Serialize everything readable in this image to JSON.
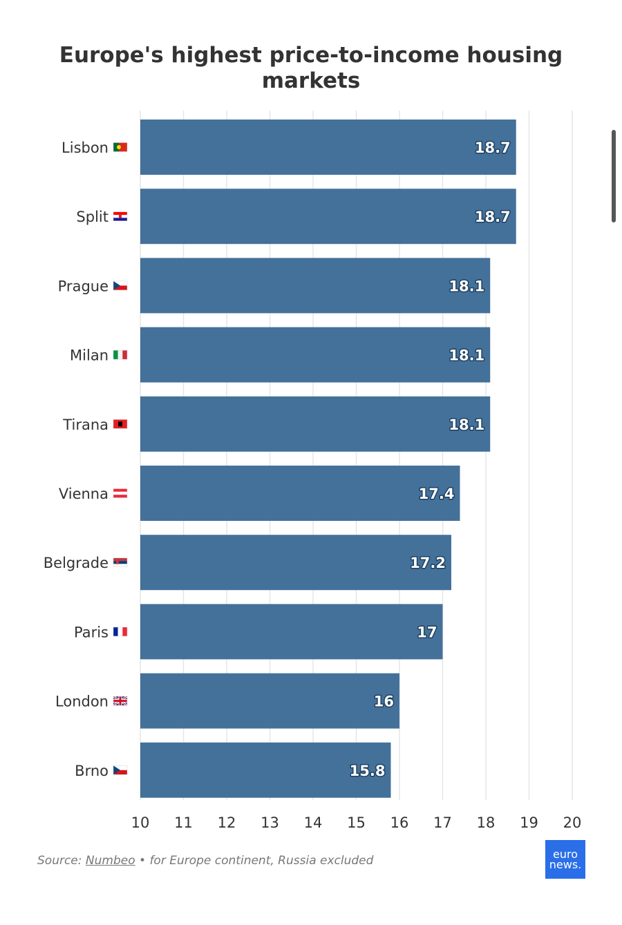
{
  "title_line1": "Europe's highest price-to-income housing",
  "title_line2": "markets",
  "source": {
    "prefix": "Source: ",
    "link_text": "Numbeo",
    "suffix": " • for Europe continent, Russia excluded"
  },
  "logo": {
    "line1": "euro",
    "line2": "news."
  },
  "colors": {
    "bar": "#44719a",
    "grid": "#e6e6e6",
    "label": "#333333"
  },
  "chart_data": {
    "type": "bar",
    "orientation": "horizontal",
    "title": "Europe's highest price-to-income housing markets",
    "categories": [
      "Lisbon",
      "Split",
      "Prague",
      "Milan",
      "Tirana",
      "Vienna",
      "Belgrade",
      "Paris",
      "London",
      "Brno"
    ],
    "flags": [
      "pt",
      "hr",
      "cz",
      "it",
      "al",
      "at",
      "rs",
      "fr",
      "gb",
      "cz"
    ],
    "values": [
      18.7,
      18.7,
      18.1,
      18.1,
      18.1,
      17.4,
      17.2,
      17,
      16,
      15.8
    ],
    "value_labels": [
      "18.7",
      "18.7",
      "18.1",
      "18.1",
      "18.1",
      "17.4",
      "17.2",
      "17",
      "16",
      "15.8"
    ],
    "xlim": [
      10,
      20
    ],
    "xticks": [
      "10",
      "11",
      "12",
      "13",
      "14",
      "15",
      "16",
      "17",
      "18",
      "19",
      "20"
    ],
    "grid": true
  }
}
